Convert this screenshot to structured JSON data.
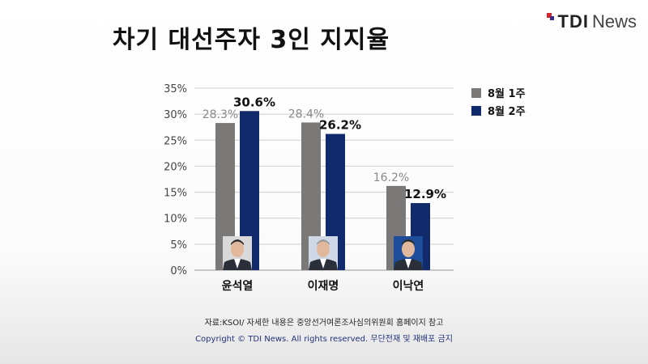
{
  "header": {
    "title": "차기 대선주자 3인 지지율",
    "logo_bold": "TDI",
    "logo_text": "News"
  },
  "colors": {
    "series1": "#7b7878",
    "series2": "#102a6b",
    "grid": "#cfcfcf"
  },
  "footer": {
    "source": "자료:KSOI/ 자세한 내용은 중앙선거여론조사심의위원회 홈페이지 참고",
    "copyright": "Copyright © TDI News. All rights reserved. 무단전재 및 재배포 금지"
  },
  "chart_data": {
    "type": "bar",
    "title": "차기 대선주자 3인 지지율",
    "categories": [
      "윤석열",
      "이재명",
      "이낙연"
    ],
    "series": [
      {
        "name": "8월 1주",
        "values": [
          28.3,
          28.4,
          16.2
        ],
        "labels": [
          "28.3%",
          "28.4%",
          "16.2%"
        ]
      },
      {
        "name": "8월 2주",
        "values": [
          30.6,
          26.2,
          12.9
        ],
        "labels": [
          "30.6%",
          "26.2%",
          "12.9%"
        ]
      }
    ],
    "ylim": [
      0,
      35
    ],
    "yticks": [
      "0%",
      "5%",
      "10%",
      "15%",
      "20%",
      "25%",
      "30%",
      "35%"
    ],
    "ytick_values": [
      0,
      5,
      10,
      15,
      20,
      25,
      30,
      35
    ],
    "grid": true,
    "legend": "top-right",
    "candidate_photos": [
      "portrait-yoon",
      "portrait-lee-jm",
      "portrait-lee-ny"
    ]
  }
}
